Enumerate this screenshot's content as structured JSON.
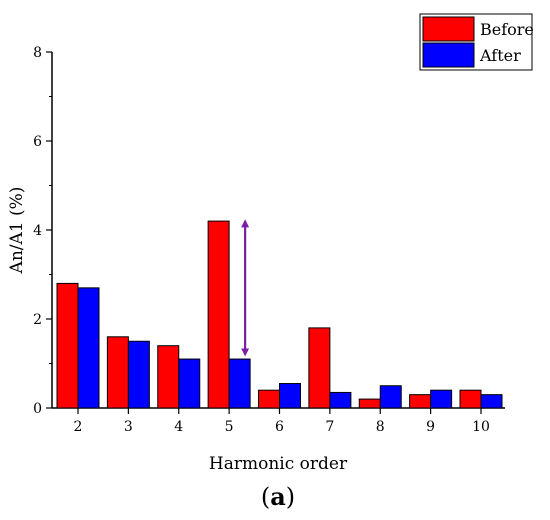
{
  "chart_data": {
    "type": "bar",
    "categories": [
      "2",
      "3",
      "4",
      "5",
      "6",
      "7",
      "8",
      "9",
      "10"
    ],
    "series": [
      {
        "name": "Before",
        "color": "#ff0000",
        "values": [
          2.8,
          1.6,
          1.4,
          4.2,
          0.4,
          1.8,
          0.2,
          0.3,
          0.4
        ]
      },
      {
        "name": "After",
        "color": "#0000ff",
        "values": [
          2.7,
          1.5,
          1.1,
          1.1,
          0.55,
          0.35,
          0.5,
          0.4,
          0.3
        ]
      }
    ],
    "xlabel": "Harmonic order",
    "ylabel": "An/A1 (%)",
    "ylim": [
      0,
      8
    ],
    "yticks": [
      "0",
      "2",
      "4",
      "6",
      "8"
    ],
    "legend_position": "top-right",
    "annotation": {
      "type": "double-arrow",
      "category": "5",
      "from_value": 1.25,
      "to_value": 4.15,
      "color": "#7b1fa2"
    },
    "panel_label": {
      "open": "(",
      "letter": "a",
      "close": ")"
    }
  }
}
